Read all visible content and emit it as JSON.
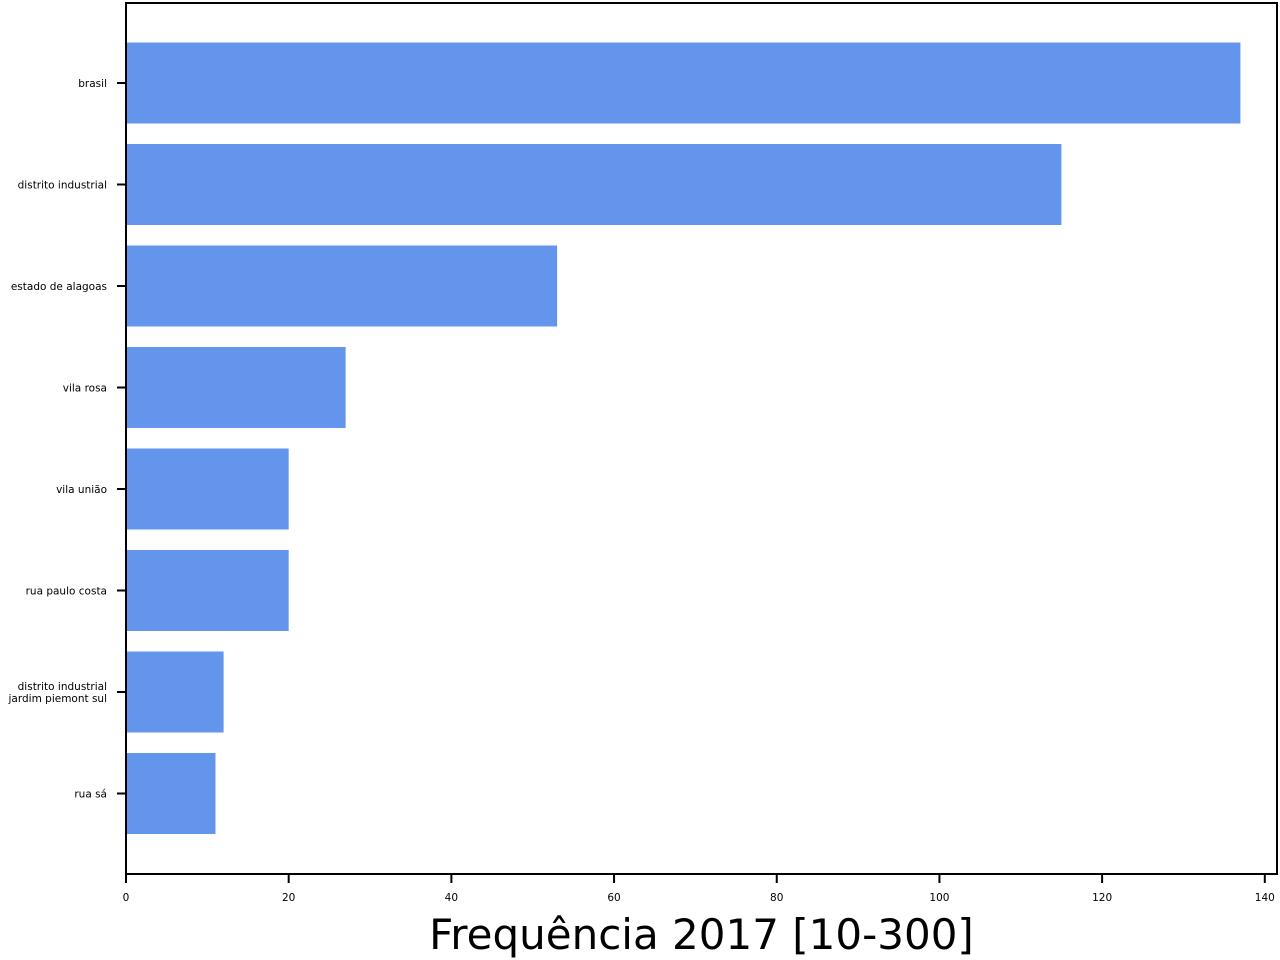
{
  "chart_data": {
    "type": "bar",
    "orientation": "horizontal",
    "categories": [
      [
        "brasil"
      ],
      [
        "distrito industrial"
      ],
      [
        "estado de alagoas"
      ],
      [
        "vila rosa"
      ],
      [
        "vila união"
      ],
      [
        "rua paulo costa"
      ],
      [
        "distrito industrial",
        "jardim piemont sul"
      ],
      [
        "rua sá"
      ]
    ],
    "values": [
      137,
      115,
      53,
      27,
      20,
      20,
      12,
      11
    ],
    "xlabel": "Frequência 2017 [10-300]",
    "ylabel": "",
    "xlim": [
      0,
      141.5
    ],
    "xticks": [
      0,
      20,
      40,
      60,
      80,
      100,
      120,
      140
    ],
    "grid": false,
    "legend": "none",
    "bar_color": "#6495ed"
  }
}
